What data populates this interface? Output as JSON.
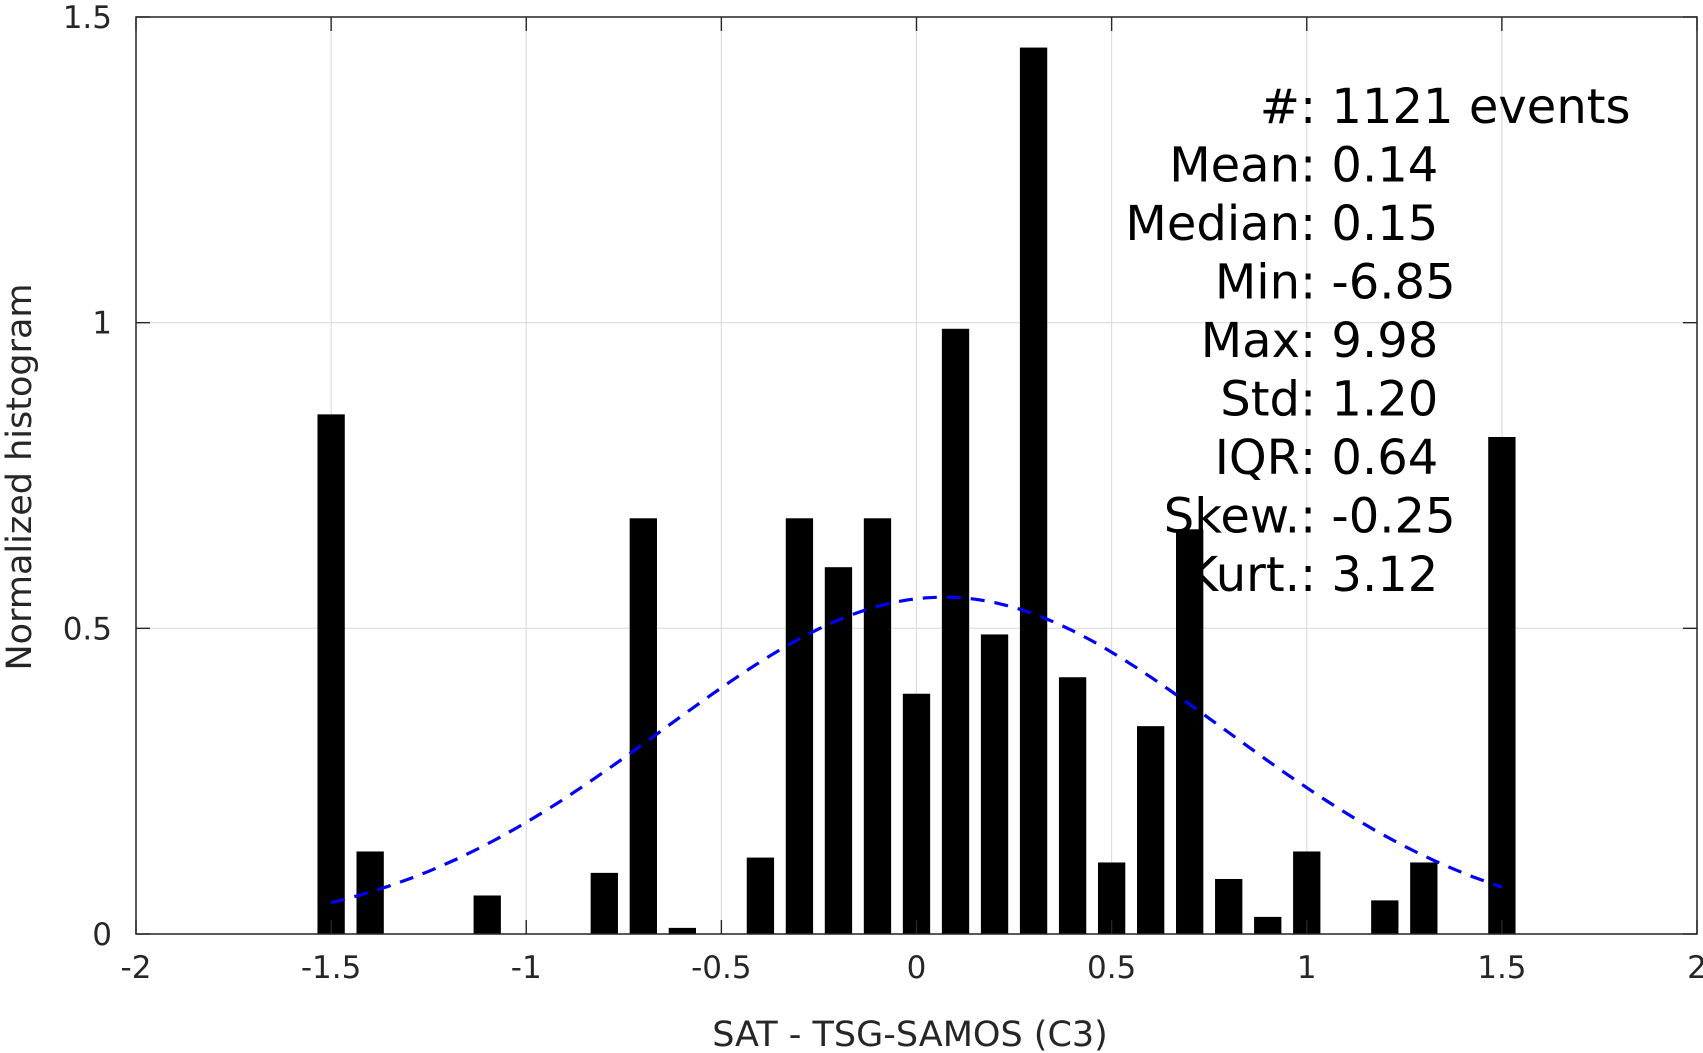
{
  "chart_data": {
    "type": "bar",
    "xlabel": "SAT - TSG-SAMOS (C3)",
    "ylabel": "Normalized histogram",
    "xlim": [
      -2,
      2
    ],
    "ylim": [
      0,
      1.5
    ],
    "grid": true,
    "x_ticks": [
      "-2",
      "-1.5",
      "-1",
      "-0.5",
      "0",
      "0.5",
      "1",
      "1.5",
      "2"
    ],
    "y_ticks": [
      "0",
      "0.5",
      "1",
      "1.5"
    ],
    "bar_width": 0.07,
    "bars": [
      {
        "x": -1.5,
        "y": 0.85
      },
      {
        "x": -1.4,
        "y": 0.135
      },
      {
        "x": -1.1,
        "y": 0.063
      },
      {
        "x": -0.8,
        "y": 0.1
      },
      {
        "x": -0.7,
        "y": 0.68
      },
      {
        "x": -0.6,
        "y": 0.01
      },
      {
        "x": -0.4,
        "y": 0.125
      },
      {
        "x": -0.3,
        "y": 0.68
      },
      {
        "x": -0.2,
        "y": 0.6
      },
      {
        "x": -0.1,
        "y": 0.68
      },
      {
        "x": 0.0,
        "y": 0.393
      },
      {
        "x": 0.1,
        "y": 0.99
      },
      {
        "x": 0.2,
        "y": 0.49
      },
      {
        "x": 0.3,
        "y": 1.45
      },
      {
        "x": 0.4,
        "y": 0.42
      },
      {
        "x": 0.5,
        "y": 0.117
      },
      {
        "x": 0.6,
        "y": 0.34
      },
      {
        "x": 0.7,
        "y": 0.662
      },
      {
        "x": 0.8,
        "y": 0.09
      },
      {
        "x": 0.9,
        "y": 0.028
      },
      {
        "x": 1.0,
        "y": 0.135
      },
      {
        "x": 1.2,
        "y": 0.055
      },
      {
        "x": 1.3,
        "y": 0.117
      },
      {
        "x": 1.5,
        "y": 0.813
      }
    ],
    "fit_curve": {
      "style": "dashed",
      "color": "#0000ff",
      "mean": 0.07,
      "std": 0.72,
      "x_range": [
        -1.5,
        1.5
      ],
      "peak": 0.551
    },
    "stats_box": {
      "placement": "top-right",
      "lines": [
        {
          "label": "#  ",
          "value": ": 1121 events"
        },
        {
          "label": "Mean ",
          "value": ": 0.14"
        },
        {
          "label": "Median ",
          "value": ": 0.15"
        },
        {
          "label": "Min ",
          "value": ": -6.85"
        },
        {
          "label": "Max ",
          "value": ": 9.98"
        },
        {
          "label": "Std ",
          "value": ": 1.20"
        },
        {
          "label": "IQR ",
          "value": ": 0.64"
        },
        {
          "label": "Skew. ",
          "value": ": -0.25"
        },
        {
          "label": "Kurt. ",
          "value": ": 3.12"
        }
      ]
    },
    "colors": {
      "bars": "#000000",
      "grid": "#dddddd",
      "axis": "#262626"
    }
  }
}
